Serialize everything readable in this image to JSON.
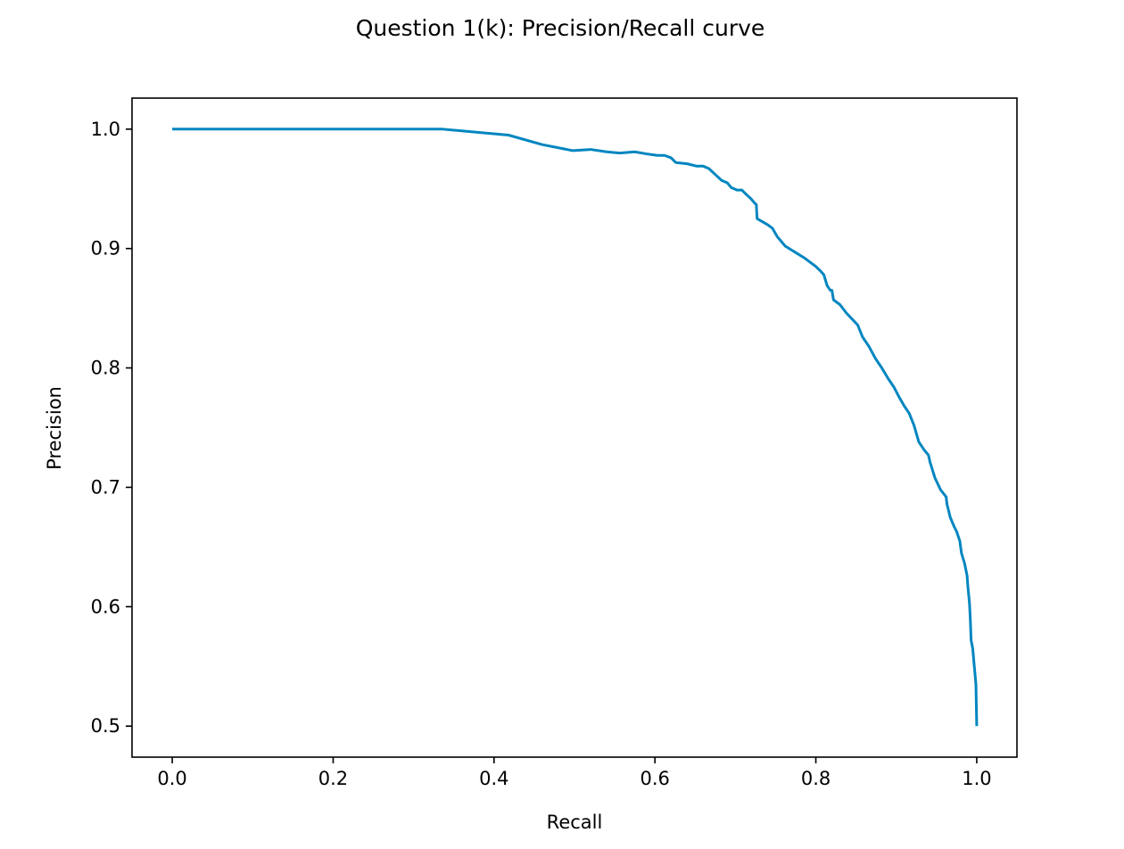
{
  "chart_data": {
    "type": "line",
    "title": "Question 1(k): Precision/Recall curve",
    "xlabel": "Recall",
    "ylabel": "Precision",
    "xlim": [
      -0.05,
      1.05
    ],
    "ylim": [
      0.474,
      1.026
    ],
    "xticks": [
      "0.0",
      "0.2",
      "0.4",
      "0.6",
      "0.8",
      "1.0"
    ],
    "yticks": [
      "0.5",
      "0.6",
      "0.7",
      "0.8",
      "0.9",
      "1.0"
    ],
    "grid": false,
    "legend": "none",
    "series": [
      {
        "color": "#0086c0",
        "x": [
          0.0,
          0.336,
          0.418,
          0.46,
          0.498,
          0.52,
          0.54,
          0.556,
          0.575,
          0.592,
          0.603,
          0.612,
          0.62,
          0.626,
          0.64,
          0.652,
          0.66,
          0.667,
          0.675,
          0.683,
          0.69,
          0.695,
          0.702,
          0.708,
          0.714,
          0.719,
          0.724,
          0.726,
          0.727,
          0.74,
          0.746,
          0.752,
          0.762,
          0.774,
          0.786,
          0.792,
          0.8,
          0.806,
          0.81,
          0.814,
          0.818,
          0.82,
          0.822,
          0.83,
          0.838,
          0.845,
          0.852,
          0.858,
          0.866,
          0.874,
          0.882,
          0.89,
          0.897,
          0.904,
          0.91,
          0.916,
          0.922,
          0.928,
          0.935,
          0.94,
          0.942,
          0.948,
          0.955,
          0.962,
          0.963,
          0.967,
          0.972,
          0.975,
          0.979,
          0.981,
          0.985,
          0.988,
          0.989,
          0.991,
          0.992,
          0.993,
          0.995,
          0.997,
          0.999,
          1.0
        ],
        "y": [
          1.0,
          1.0,
          0.995,
          0.987,
          0.982,
          0.983,
          0.981,
          0.98,
          0.981,
          0.979,
          0.978,
          0.978,
          0.976,
          0.972,
          0.971,
          0.969,
          0.969,
          0.967,
          0.962,
          0.957,
          0.955,
          0.951,
          0.949,
          0.949,
          0.945,
          0.942,
          0.938,
          0.937,
          0.925,
          0.92,
          0.917,
          0.91,
          0.902,
          0.897,
          0.892,
          0.889,
          0.885,
          0.881,
          0.878,
          0.869,
          0.865,
          0.865,
          0.857,
          0.853,
          0.846,
          0.841,
          0.836,
          0.826,
          0.818,
          0.808,
          0.8,
          0.791,
          0.784,
          0.775,
          0.768,
          0.762,
          0.752,
          0.738,
          0.731,
          0.727,
          0.721,
          0.708,
          0.698,
          0.692,
          0.686,
          0.675,
          0.667,
          0.663,
          0.655,
          0.645,
          0.636,
          0.626,
          0.617,
          0.603,
          0.59,
          0.572,
          0.565,
          0.55,
          0.535,
          0.5
        ]
      }
    ]
  }
}
